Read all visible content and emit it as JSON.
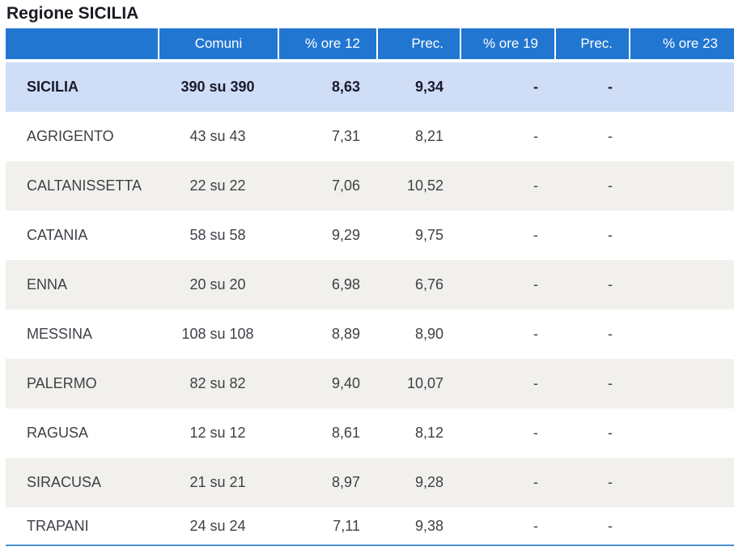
{
  "page": {
    "title": "Regione SICILIA"
  },
  "colors": {
    "header_blue": "#2176d2",
    "region_row_bg": "#cfdef6",
    "stripe_bg": "#f1f0ec",
    "table_bottom_border": "#4a90cf"
  },
  "table": {
    "columns": [
      {
        "key": "name",
        "label": ""
      },
      {
        "key": "comuni",
        "label": "Comuni"
      },
      {
        "key": "ore12",
        "label": "% ore 12"
      },
      {
        "key": "prec12",
        "label": "Prec."
      },
      {
        "key": "ore19",
        "label": "% ore 19"
      },
      {
        "key": "prec19",
        "label": "Prec."
      },
      {
        "key": "ore23",
        "label": "% ore 23"
      }
    ],
    "rows": [
      {
        "name": "SICILIA",
        "comuni": "390 su 390",
        "ore12": "8,63",
        "prec12": "9,34",
        "ore19": "-",
        "prec19": "-",
        "ore23": ""
      },
      {
        "name": "AGRIGENTO",
        "comuni": "43 su 43",
        "ore12": "7,31",
        "prec12": "8,21",
        "ore19": "-",
        "prec19": "-",
        "ore23": ""
      },
      {
        "name": "CALTANISSETTA",
        "comuni": "22 su 22",
        "ore12": "7,06",
        "prec12": "10,52",
        "ore19": "-",
        "prec19": "-",
        "ore23": ""
      },
      {
        "name": "CATANIA",
        "comuni": "58 su 58",
        "ore12": "9,29",
        "prec12": "9,75",
        "ore19": "-",
        "prec19": "-",
        "ore23": ""
      },
      {
        "name": "ENNA",
        "comuni": "20 su 20",
        "ore12": "6,98",
        "prec12": "6,76",
        "ore19": "-",
        "prec19": "-",
        "ore23": ""
      },
      {
        "name": "MESSINA",
        "comuni": "108 su 108",
        "ore12": "8,89",
        "prec12": "8,90",
        "ore19": "-",
        "prec19": "-",
        "ore23": ""
      },
      {
        "name": "PALERMO",
        "comuni": "82 su 82",
        "ore12": "9,40",
        "prec12": "10,07",
        "ore19": "-",
        "prec19": "-",
        "ore23": ""
      },
      {
        "name": "RAGUSA",
        "comuni": "12 su 12",
        "ore12": "8,61",
        "prec12": "8,12",
        "ore19": "-",
        "prec19": "-",
        "ore23": ""
      },
      {
        "name": "SIRACUSA",
        "comuni": "21 su 21",
        "ore12": "8,97",
        "prec12": "9,28",
        "ore19": "-",
        "prec19": "-",
        "ore23": ""
      },
      {
        "name": "TRAPANI",
        "comuni": "24 su 24",
        "ore12": "7,11",
        "prec12": "9,38",
        "ore19": "-",
        "prec19": "-",
        "ore23": ""
      }
    ]
  }
}
